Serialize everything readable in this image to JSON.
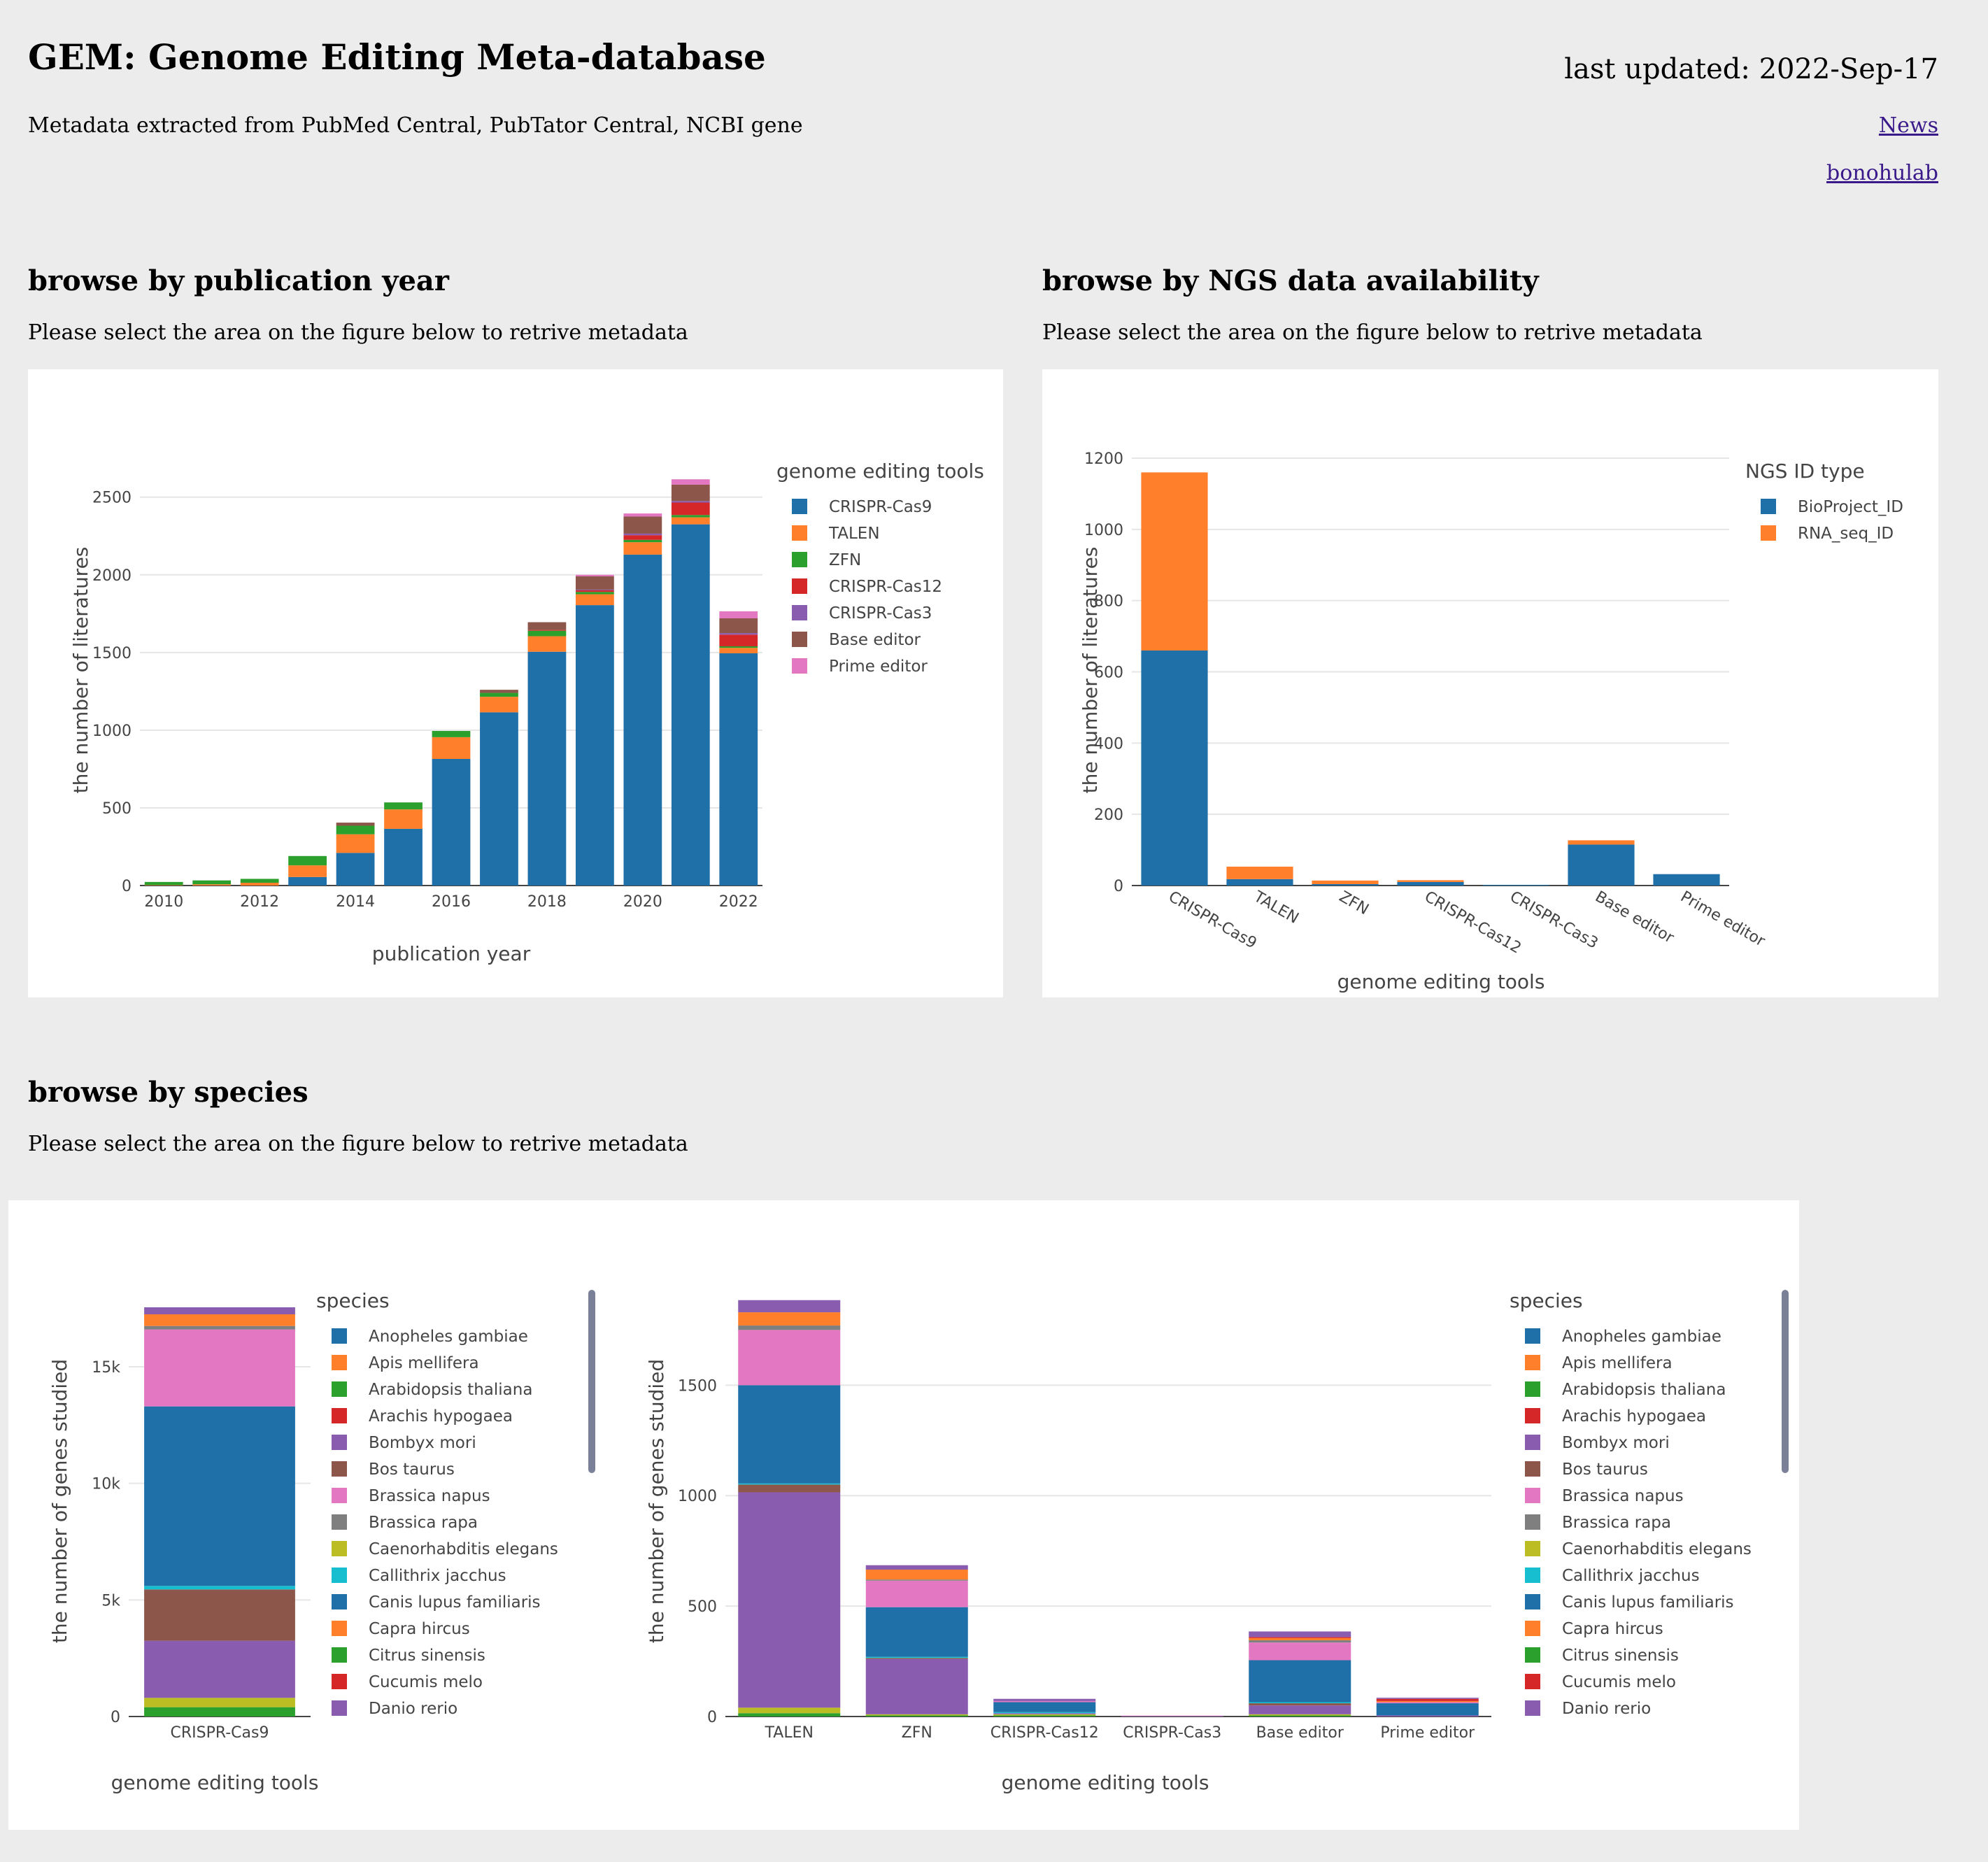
{
  "header": {
    "title": "GEM: Genome Editing Meta-database",
    "subtitle": "Metadata extracted from PubMed Central, PubTator Central, NCBI gene",
    "last_updated": "last updated: 2022-Sep-17",
    "news_link": "News",
    "lab_link": "bonohulab"
  },
  "sections": {
    "year": {
      "heading": "browse by publication year",
      "instruction": "Please select the area on the figure below to retrive metadata"
    },
    "ngs": {
      "heading": "browse by NGS data availability",
      "instruction": "Please select the area on the figure below to retrive metadata"
    },
    "species": {
      "heading": "browse by species",
      "instruction": "Please select the area on the figure below to retrive metadata"
    }
  },
  "colors": {
    "blue": "#1f6fa9",
    "orange": "#ff7f2a",
    "green": "#2ca02c",
    "red": "#d62728",
    "purple": "#8a5cb0",
    "brown": "#8c564b",
    "pink": "#e377c2",
    "gray": "#7f7f7f",
    "olive": "#bcbd22",
    "cyan": "#17becf"
  },
  "chart_data": [
    {
      "id": "year",
      "type": "bar",
      "stacked": true,
      "xlabel": "publication year",
      "ylabel": "the number of literatures",
      "legend_title": "genome editing tools",
      "legend_position": "right",
      "ylim": [
        0,
        2760
      ],
      "yticks": [
        0,
        500,
        1000,
        1500,
        2000,
        2500
      ],
      "xtick_labels": [
        "2010",
        "2012",
        "2014",
        "2016",
        "2018",
        "2020",
        "2022"
      ],
      "categories": [
        "2010",
        "2011",
        "2012",
        "2013",
        "2014",
        "2015",
        "2016",
        "2017",
        "2018",
        "2019",
        "2020",
        "2021",
        "2022"
      ],
      "series": [
        {
          "name": "CRISPR-Cas9",
          "color": "#1f6fa9",
          "values": [
            0,
            0,
            0,
            55,
            210,
            365,
            815,
            1115,
            1505,
            1805,
            2130,
            2325,
            1495
          ]
        },
        {
          "name": "TALEN",
          "color": "#ff7f2a",
          "values": [
            3,
            8,
            18,
            75,
            120,
            125,
            140,
            100,
            100,
            70,
            80,
            45,
            35
          ]
        },
        {
          "name": "ZFN",
          "color": "#2ca02c",
          "values": [
            20,
            25,
            25,
            60,
            55,
            45,
            40,
            25,
            35,
            15,
            15,
            15,
            10
          ]
        },
        {
          "name": "CRISPR-Cas12",
          "color": "#d62728",
          "values": [
            0,
            0,
            0,
            0,
            0,
            0,
            0,
            0,
            5,
            10,
            30,
            80,
            75
          ]
        },
        {
          "name": "CRISPR-Cas3",
          "color": "#8a5cb0",
          "values": [
            0,
            0,
            0,
            0,
            0,
            0,
            0,
            0,
            0,
            5,
            10,
            10,
            10
          ]
        },
        {
          "name": "Base editor",
          "color": "#8c564b",
          "values": [
            0,
            0,
            0,
            0,
            20,
            0,
            0,
            20,
            50,
            85,
            110,
            105,
            95
          ]
        },
        {
          "name": "Prime editor",
          "color": "#e377c2",
          "values": [
            0,
            0,
            0,
            0,
            0,
            0,
            0,
            0,
            0,
            10,
            20,
            35,
            45
          ]
        }
      ]
    },
    {
      "id": "ngs",
      "type": "bar",
      "stacked": true,
      "xlabel": "genome editing tools",
      "ylabel": "the number of literatures",
      "legend_title": "NGS ID type",
      "legend_position": "right",
      "ylim": [
        0,
        1200
      ],
      "yticks": [
        0,
        200,
        400,
        600,
        800,
        1000,
        1200
      ],
      "categories": [
        "CRISPR-Cas9",
        "TALEN",
        "ZFN",
        "CRISPR-Cas12",
        "CRISPR-Cas3",
        "Base editor",
        "Prime editor"
      ],
      "series": [
        {
          "name": "BioProject_ID",
          "color": "#1f6fa9",
          "values": [
            660,
            18,
            4,
            10,
            2,
            115,
            32
          ]
        },
        {
          "name": "RNA_seq_ID",
          "color": "#ff7f2a",
          "values": [
            500,
            35,
            10,
            5,
            0,
            12,
            0
          ]
        }
      ]
    },
    {
      "id": "species_cas9",
      "type": "bar",
      "stacked": true,
      "xlabel": "genome editing tools",
      "ylabel": "the number of genes studied",
      "legend_title": "species",
      "legend_position": "right",
      "ylim": [
        0,
        18000
      ],
      "yticks": [
        0,
        5000,
        10000,
        15000
      ],
      "ytick_labels": [
        "0",
        "5k",
        "10k",
        "15k"
      ],
      "categories": [
        "CRISPR-Cas9"
      ],
      "series": [
        {
          "name": "Arabidopsis thaliana",
          "color": "#2ca02c",
          "values": [
            400
          ]
        },
        {
          "name": "Caenorhabditis elegans",
          "color": "#bcbd22",
          "values": [
            400
          ]
        },
        {
          "name": "Danio rerio",
          "color": "#8a5cb0",
          "values": [
            2450
          ]
        },
        {
          "name": "Bos taurus",
          "color": "#8c564b",
          "values": [
            2200
          ]
        },
        {
          "name": "Callithrix jacchus",
          "color": "#17becf",
          "values": [
            150
          ]
        },
        {
          "name": "Anopheles gambiae",
          "color": "#1f6fa9",
          "values": [
            7700
          ]
        },
        {
          "name": "Brassica napus",
          "color": "#e377c2",
          "values": [
            3300
          ]
        },
        {
          "name": "Brassica rapa",
          "color": "#7f7f7f",
          "values": [
            150
          ]
        },
        {
          "name": "Capra hircus",
          "color": "#ff7f2a",
          "values": [
            500
          ]
        },
        {
          "name": "Bombyx mori",
          "color": "#8a5cb0",
          "values": [
            300
          ]
        }
      ]
    },
    {
      "id": "species_others",
      "type": "bar",
      "stacked": true,
      "xlabel": "genome editing tools",
      "ylabel": "the number of genes studied",
      "legend_title": "species",
      "legend_position": "right",
      "ylim": [
        0,
        1900
      ],
      "yticks": [
        0,
        500,
        1000,
        1500
      ],
      "categories": [
        "TALEN",
        "ZFN",
        "CRISPR-Cas12",
        "CRISPR-Cas3",
        "Base editor",
        "Prime editor"
      ],
      "series": [
        {
          "name": "Arabidopsis thaliana",
          "color": "#2ca02c",
          "values": [
            15,
            5,
            5,
            0,
            5,
            0
          ]
        },
        {
          "name": "Caenorhabditis elegans",
          "color": "#bcbd22",
          "values": [
            25,
            5,
            5,
            0,
            5,
            0
          ]
        },
        {
          "name": "Danio rerio",
          "color": "#8a5cb0",
          "values": [
            975,
            250,
            5,
            2,
            40,
            5
          ]
        },
        {
          "name": "Bos taurus",
          "color": "#8c564b",
          "values": [
            35,
            5,
            0,
            0,
            10,
            0
          ]
        },
        {
          "name": "Callithrix jacchus",
          "color": "#17becf",
          "values": [
            5,
            5,
            5,
            0,
            5,
            0
          ]
        },
        {
          "name": "Anopheles gambiae",
          "color": "#1f6fa9",
          "values": [
            445,
            225,
            45,
            0,
            190,
            55
          ]
        },
        {
          "name": "Brassica napus",
          "color": "#e377c2",
          "values": [
            250,
            120,
            5,
            2,
            80,
            5
          ]
        },
        {
          "name": "Brassica rapa",
          "color": "#7f7f7f",
          "values": [
            20,
            5,
            0,
            0,
            10,
            0
          ]
        },
        {
          "name": "Capra hircus",
          "color": "#ff7f2a",
          "values": [
            60,
            45,
            0,
            0,
            10,
            5
          ]
        },
        {
          "name": "Cucumis melo",
          "color": "#d62728",
          "values": [
            0,
            0,
            0,
            0,
            5,
            10
          ]
        },
        {
          "name": "Bombyx mori",
          "color": "#8a5cb0",
          "values": [
            55,
            20,
            10,
            0,
            25,
            5
          ]
        }
      ]
    }
  ],
  "legends": {
    "year": [
      "CRISPR-Cas9",
      "TALEN",
      "ZFN",
      "CRISPR-Cas12",
      "CRISPR-Cas3",
      "Base editor",
      "Prime editor"
    ],
    "ngs": [
      "BioProject_ID",
      "RNA_seq_ID"
    ],
    "species": [
      {
        "name": "Anopheles gambiae",
        "color": "#1f6fa9"
      },
      {
        "name": "Apis mellifera",
        "color": "#ff7f2a"
      },
      {
        "name": "Arabidopsis thaliana",
        "color": "#2ca02c"
      },
      {
        "name": "Arachis hypogaea",
        "color": "#d62728"
      },
      {
        "name": "Bombyx mori",
        "color": "#8a5cb0"
      },
      {
        "name": "Bos taurus",
        "color": "#8c564b"
      },
      {
        "name": "Brassica napus",
        "color": "#e377c2"
      },
      {
        "name": "Brassica rapa",
        "color": "#7f7f7f"
      },
      {
        "name": "Caenorhabditis elegans",
        "color": "#bcbd22"
      },
      {
        "name": "Callithrix jacchus",
        "color": "#17becf"
      },
      {
        "name": "Canis lupus familiaris",
        "color": "#1f6fa9"
      },
      {
        "name": "Capra hircus",
        "color": "#ff7f2a"
      },
      {
        "name": "Citrus sinensis",
        "color": "#2ca02c"
      },
      {
        "name": "Cucumis melo",
        "color": "#d62728"
      },
      {
        "name": "Danio rerio",
        "color": "#8a5cb0"
      }
    ]
  }
}
